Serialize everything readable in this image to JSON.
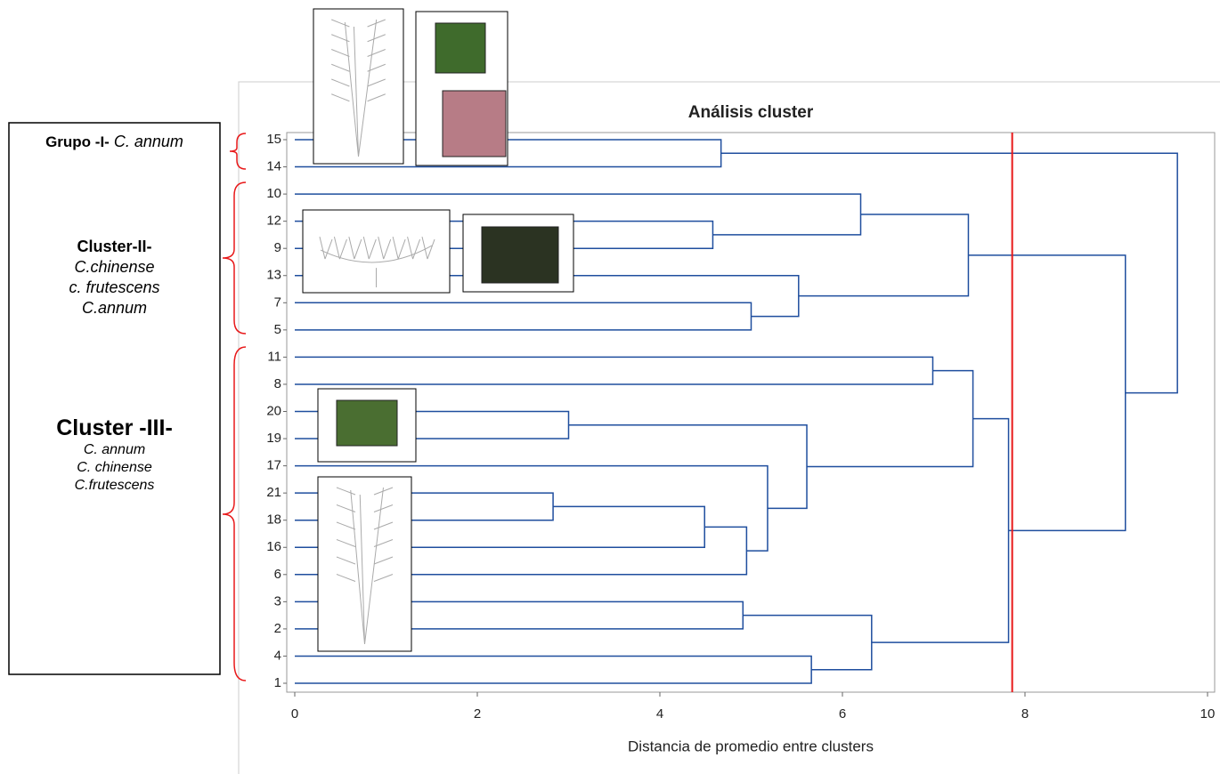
{
  "chart_data": {
    "type": "dendrogram",
    "title": "Análisis cluster",
    "x_label": "Distancia de promedio entre clusters",
    "leaves": [
      "15",
      "14",
      "10",
      "12",
      "9",
      "13",
      "7",
      "5",
      "11",
      "8",
      "20",
      "19",
      "17",
      "21",
      "18",
      "16",
      "6",
      "3",
      "2",
      "4",
      "1"
    ],
    "merges": [
      {
        "children": [
          0,
          1
        ],
        "height": 4.67
      },
      {
        "children": [
          3,
          4
        ],
        "height": 4.58
      },
      {
        "children": [
          2,
          22
        ],
        "height": 6.2
      },
      {
        "children": [
          6,
          7
        ],
        "height": 5.0
      },
      {
        "children": [
          5,
          24
        ],
        "height": 5.52
      },
      {
        "children": [
          23,
          25
        ],
        "height": 7.38
      },
      {
        "children": [
          8,
          9
        ],
        "height": 6.99
      },
      {
        "children": [
          10,
          11
        ],
        "height": 3.0
      },
      {
        "children": [
          13,
          14
        ],
        "height": 2.83
      },
      {
        "children": [
          29,
          15
        ],
        "height": 4.49
      },
      {
        "children": [
          30,
          16
        ],
        "height": 4.95
      },
      {
        "children": [
          12,
          31
        ],
        "height": 5.18
      },
      {
        "children": [
          28,
          32
        ],
        "height": 5.61
      },
      {
        "children": [
          27,
          33
        ],
        "height": 7.43
      },
      {
        "children": [
          17,
          18
        ],
        "height": 4.91
      },
      {
        "children": [
          19,
          20
        ],
        "height": 5.66
      },
      {
        "children": [
          35,
          36
        ],
        "height": 6.32
      },
      {
        "children": [
          34,
          37
        ],
        "height": 7.82
      },
      {
        "children": [
          26,
          38
        ],
        "height": 9.1
      },
      {
        "children": [
          21,
          39
        ],
        "height": 9.67
      }
    ],
    "line_color": "#1f4e9e",
    "cutoff": 7.86,
    "cutoff_color": "#e8191a",
    "xlim": [
      0,
      10
    ],
    "xticks": [
      0,
      2,
      4,
      6,
      8,
      10
    ]
  },
  "groups": [
    {
      "title": "Grupo -I-",
      "species": [
        "C. annum"
      ]
    },
    {
      "title": "Cluster-II-",
      "species": [
        "C.chinense",
        "c. frutescens",
        "C.annum"
      ]
    },
    {
      "title": "Cluster -III-",
      "species": [
        "C. annum",
        "C. chinense",
        "C.frutescens"
      ]
    }
  ]
}
